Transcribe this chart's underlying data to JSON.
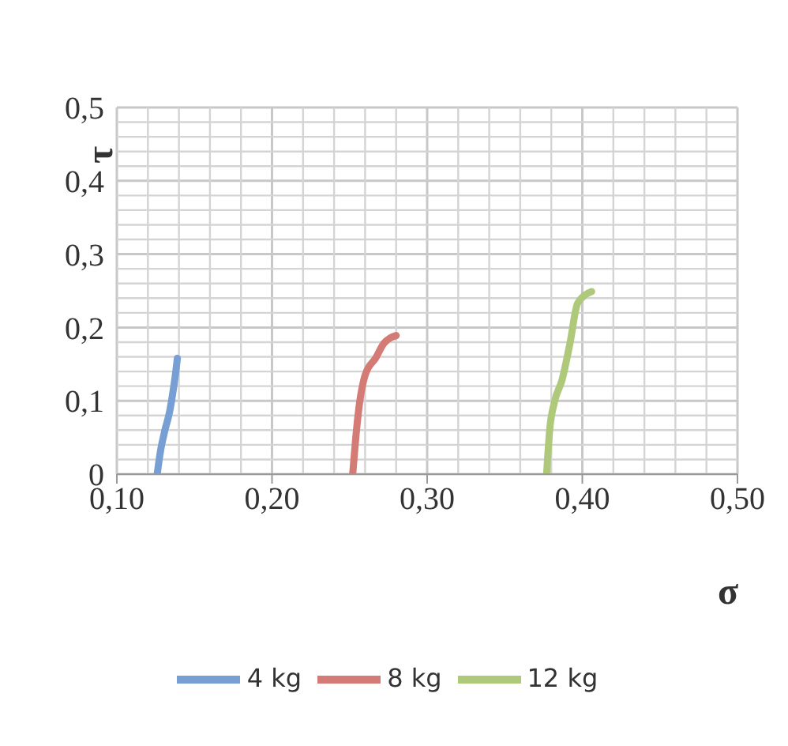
{
  "chart_data": {
    "type": "line",
    "xlabel": "σ",
    "ylabel": "τ",
    "xlim": [
      0.1,
      0.5
    ],
    "xticks": [
      {
        "value": 0.1,
        "label": "0,10"
      },
      {
        "value": 0.2,
        "label": "0,20"
      },
      {
        "value": 0.3,
        "label": "0,30"
      },
      {
        "value": 0.4,
        "label": "0,40"
      },
      {
        "value": 0.5,
        "label": "0,50"
      }
    ],
    "ylim": [
      0,
      0.5
    ],
    "yticks": [
      0,
      {
        "value": 0.1,
        "label": "0,1"
      },
      {
        "value": 0.2,
        "label": "0,2"
      },
      {
        "value": 0.3,
        "label": "0,3"
      },
      {
        "value": 0.4,
        "label": "0,4"
      },
      {
        "value": 0.5,
        "label": "0,5"
      }
    ],
    "grid": true,
    "legend": "bottom",
    "marker": "none",
    "line_style": "solid",
    "series": [
      {
        "name": "4 kg",
        "color": "#779fd3",
        "x": [
          0.126,
          0.128,
          0.131,
          0.134,
          0.136,
          0.138,
          0.139
        ],
        "values": [
          0,
          0.03,
          0.06,
          0.085,
          0.11,
          0.14,
          0.158
        ]
      },
      {
        "name": "8 kg",
        "color": "#d47b76",
        "x": [
          0.252,
          0.254,
          0.256,
          0.26,
          0.267,
          0.272,
          0.28
        ],
        "values": [
          0,
          0.05,
          0.09,
          0.135,
          0.159,
          0.178,
          0.189
        ]
      },
      {
        "name": "12 kg",
        "color": "#aec97a",
        "x": [
          0.377,
          0.379,
          0.382,
          0.387,
          0.392,
          0.397,
          0.406
        ],
        "values": [
          0,
          0.061,
          0.098,
          0.129,
          0.178,
          0.233,
          0.249
        ]
      }
    ]
  }
}
